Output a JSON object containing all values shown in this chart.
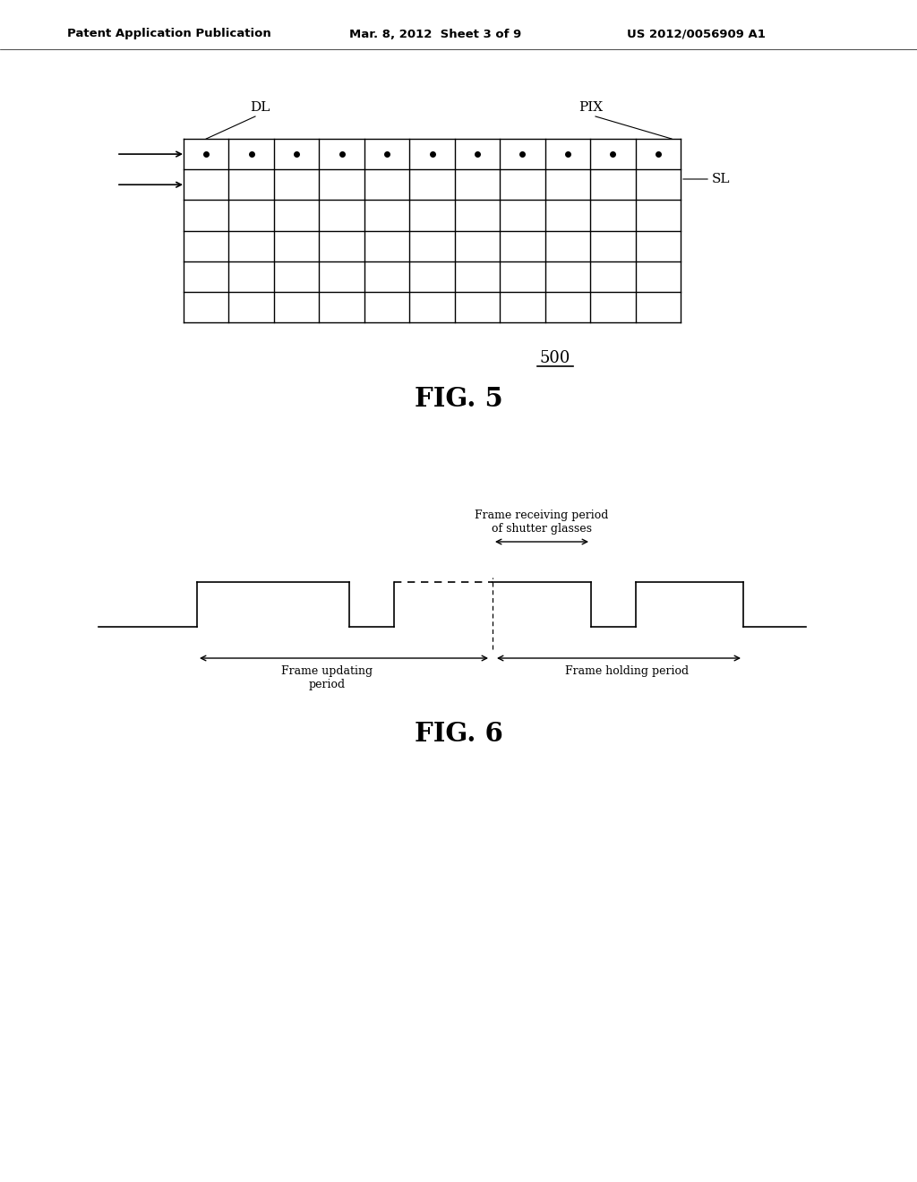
{
  "background_color": "#ffffff",
  "header_left": "Patent Application Publication",
  "header_mid": "Mar. 8, 2012  Sheet 3 of 9",
  "header_right": "US 2012/0056909 A1",
  "fig5_label": "FIG. 5",
  "fig6_label": "FIG. 6",
  "fig5_ref": "500",
  "grid_cols": 11,
  "grid_rows": 6,
  "label_DL": "DL",
  "label_PIX": "PIX",
  "label_SL": "SL"
}
